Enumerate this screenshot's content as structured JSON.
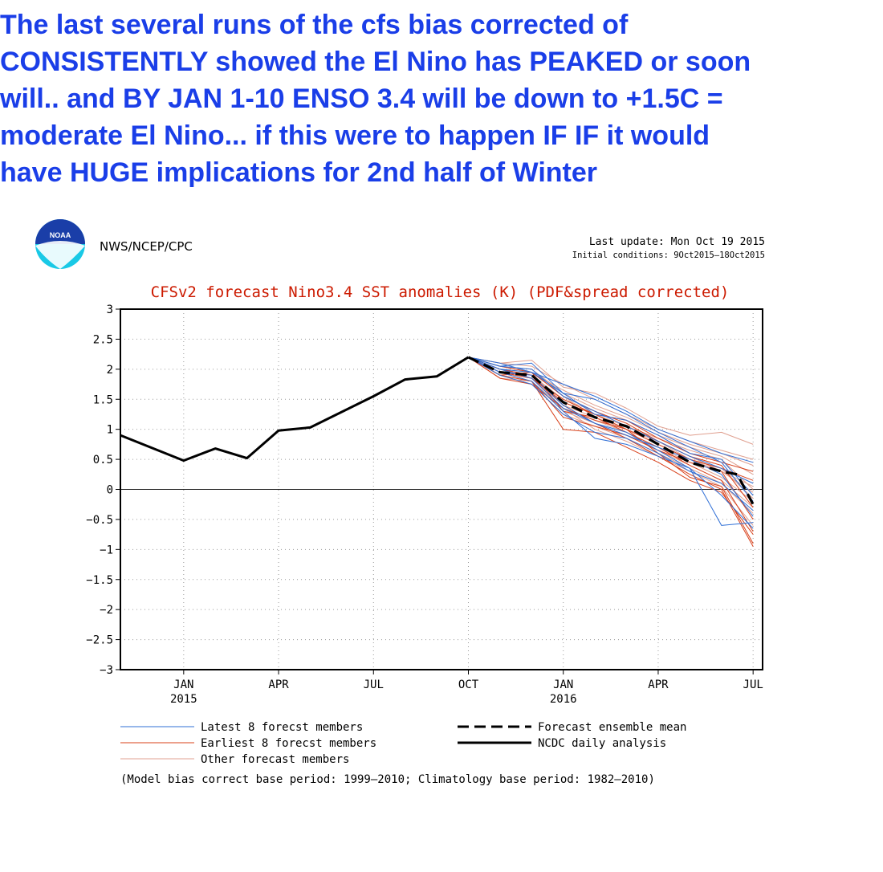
{
  "headline": {
    "lines": [
      "The last several runs of the cfs bias corrected of",
      "CONSISTENTLY showed the El Nino has  PEAKED or soon",
      "will.. and BY JAN 1-10  ENSO  3.4  will be down to +1.5C  =",
      "moderate El Nino... if this were to happen IF  IF   it would",
      "have  HUGE  implications for  2nd half of Winter"
    ]
  },
  "header": {
    "logo_text": "NOAA",
    "agency": "NWS/NCEP/CPC",
    "last_update": "Last update: Mon Oct 19 2015",
    "initial_conditions": "Initial conditions:  9Oct2015–18Oct2015"
  },
  "colors": {
    "title": "#cc1a00",
    "latest": "#2f6fd6",
    "earliest": "#d8401a",
    "other": "#e0a090",
    "ncdc": "#000000",
    "headline": "#1a3ee8"
  },
  "chart_data": {
    "type": "line",
    "title": "CFSv2 forecast Nino3.4 SST anomalies (K) (PDF&spread corrected)",
    "ylim": [
      -3,
      3
    ],
    "yticks": [
      3,
      2.5,
      2,
      1.5,
      1,
      0.5,
      0,
      -0.5,
      -1,
      -1.5,
      -2,
      -2.5,
      -3
    ],
    "xlim": [
      0,
      20.3
    ],
    "xticks": [
      {
        "x": 2,
        "label": "JAN",
        "sublabel": "2015"
      },
      {
        "x": 5,
        "label": "APR",
        "sublabel": ""
      },
      {
        "x": 8,
        "label": "JUL",
        "sublabel": ""
      },
      {
        "x": 11,
        "label": "OCT",
        "sublabel": ""
      },
      {
        "x": 14,
        "label": "JAN",
        "sublabel": "2016"
      },
      {
        "x": 17,
        "label": "APR",
        "sublabel": ""
      },
      {
        "x": 20,
        "label": "JUL",
        "sublabel": ""
      }
    ],
    "grid": true,
    "ncdc_analysis": {
      "name": "NCDC daily analysis",
      "x": [
        0,
        2,
        3,
        4,
        5,
        6,
        8,
        9,
        10,
        11
      ],
      "y": [
        0.9,
        0.48,
        0.68,
        0.52,
        0.98,
        1.03,
        1.55,
        1.83,
        1.88,
        2.2
      ]
    },
    "ensemble_mean": {
      "name": "Forecast ensemble mean",
      "x": [
        11,
        12,
        13,
        14,
        15,
        16,
        17,
        18,
        19,
        19.5,
        20
      ],
      "y": [
        2.2,
        1.95,
        1.9,
        1.45,
        1.2,
        1.05,
        0.75,
        0.45,
        0.3,
        0.25,
        -0.25
      ]
    },
    "members": {
      "latest": [
        [
          2.2,
          2.05,
          2.1,
          1.6,
          1.5,
          1.25,
          0.95,
          0.7,
          0.45,
          -0.2
        ],
        [
          2.2,
          2.0,
          1.85,
          1.35,
          1.1,
          0.95,
          0.65,
          0.35,
          -0.6,
          -0.55
        ],
        [
          2.2,
          2.1,
          1.95,
          1.75,
          1.55,
          1.3,
          1.0,
          0.8,
          0.6,
          0.45
        ],
        [
          2.2,
          1.95,
          1.8,
          1.3,
          0.85,
          0.75,
          0.55,
          0.35,
          -0.1,
          -0.65
        ],
        [
          2.2,
          2.05,
          2.0,
          1.55,
          1.3,
          1.05,
          0.8,
          0.55,
          0.35,
          0.1
        ],
        [
          2.2,
          1.9,
          1.75,
          1.25,
          0.95,
          0.85,
          0.6,
          0.3,
          0.1,
          -0.35
        ],
        [
          2.2,
          2.0,
          1.95,
          1.6,
          1.25,
          1.15,
          0.9,
          0.6,
          0.5,
          -0.1
        ],
        [
          2.2,
          1.95,
          1.9,
          1.4,
          1.1,
          0.9,
          0.7,
          0.5,
          0.25,
          -0.45
        ]
      ],
      "earliest": [
        [
          2.2,
          1.9,
          1.95,
          1.3,
          1.2,
          0.95,
          0.7,
          0.4,
          0.15,
          -0.7
        ],
        [
          2.2,
          2.0,
          1.85,
          1.5,
          1.25,
          1.0,
          0.6,
          0.2,
          0.05,
          -0.9
        ],
        [
          2.2,
          1.95,
          1.8,
          1.2,
          1.05,
          0.9,
          0.65,
          0.45,
          0.3,
          -0.5
        ],
        [
          2.2,
          1.85,
          1.75,
          1.35,
          1.15,
          1.0,
          0.75,
          0.5,
          0.35,
          0.15
        ],
        [
          2.2,
          2.05,
          1.95,
          1.55,
          1.3,
          1.1,
          0.8,
          0.55,
          0.4,
          -0.3
        ],
        [
          2.2,
          1.9,
          1.8,
          1.0,
          0.95,
          0.7,
          0.45,
          0.15,
          -0.05,
          -0.75
        ],
        [
          2.2,
          1.95,
          1.85,
          1.45,
          1.25,
          1.15,
          0.85,
          0.6,
          0.45,
          0.3
        ],
        [
          2.2,
          2.0,
          1.9,
          1.4,
          1.1,
          0.85,
          0.55,
          0.25,
          0.0,
          -0.95
        ]
      ],
      "other": [
        [
          2.2,
          2.1,
          2.15,
          1.7,
          1.6,
          1.35,
          1.05,
          0.9,
          0.95,
          0.75
        ],
        [
          2.2,
          2.0,
          1.9,
          1.5,
          1.3,
          1.05,
          0.85,
          0.65,
          0.5,
          0.0
        ],
        [
          2.2,
          1.95,
          1.85,
          1.35,
          1.15,
          0.95,
          0.7,
          0.45,
          0.2,
          -0.2
        ],
        [
          2.2,
          2.05,
          2.0,
          1.6,
          1.35,
          1.15,
          0.9,
          0.7,
          0.55,
          0.25
        ],
        [
          2.2,
          1.9,
          1.75,
          1.25,
          1.05,
          0.85,
          0.6,
          0.35,
          0.1,
          -0.4
        ],
        [
          2.2,
          2.0,
          1.95,
          1.55,
          1.2,
          1.0,
          0.8,
          0.55,
          0.3,
          -0.05
        ],
        [
          2.2,
          1.85,
          1.8,
          1.3,
          1.1,
          0.9,
          0.65,
          0.4,
          0.15,
          -0.3
        ],
        [
          2.2,
          2.05,
          1.95,
          1.65,
          1.4,
          1.2,
          0.95,
          0.75,
          0.6,
          0.4
        ],
        [
          2.2,
          1.95,
          1.85,
          1.4,
          1.2,
          1.0,
          0.75,
          0.5,
          0.35,
          -0.15
        ],
        [
          2.2,
          2.0,
          1.9,
          1.45,
          1.25,
          1.05,
          0.8,
          0.5,
          0.3,
          0.05
        ],
        [
          2.2,
          1.9,
          1.8,
          1.35,
          1.0,
          0.8,
          0.55,
          0.3,
          0.05,
          -0.6
        ],
        [
          2.2,
          2.1,
          2.05,
          1.75,
          1.5,
          1.25,
          1.0,
          0.8,
          0.65,
          0.5
        ]
      ],
      "x": [
        11,
        12,
        13,
        14,
        15,
        16,
        17,
        18,
        19,
        20
      ]
    },
    "legend": {
      "latest": "Latest 8 forecst members",
      "earliest": "Earliest 8 forecst members",
      "other": "Other forecast members",
      "mean": "Forecast ensemble mean",
      "ncdc": "NCDC daily analysis"
    },
    "footnote": "(Model bias correct base period: 1999–2010; Climatology base period: 1982–2010)"
  }
}
